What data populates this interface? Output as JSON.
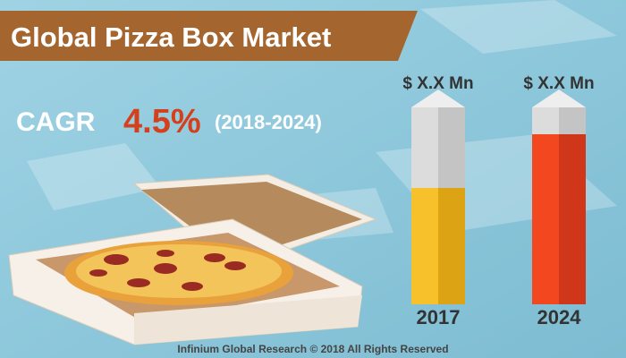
{
  "header": {
    "title": "Global Pizza Box Market"
  },
  "cagr": {
    "label": "CAGR",
    "value": "4.5%",
    "period": "(2018-2024)"
  },
  "bars": [
    {
      "label": "$ X.X Mn",
      "year": "2017"
    },
    {
      "label": "$ X.X Mn",
      "year": "2024"
    }
  ],
  "footer": "Infinium Global Research © 2018 All Rights Reserved"
}
